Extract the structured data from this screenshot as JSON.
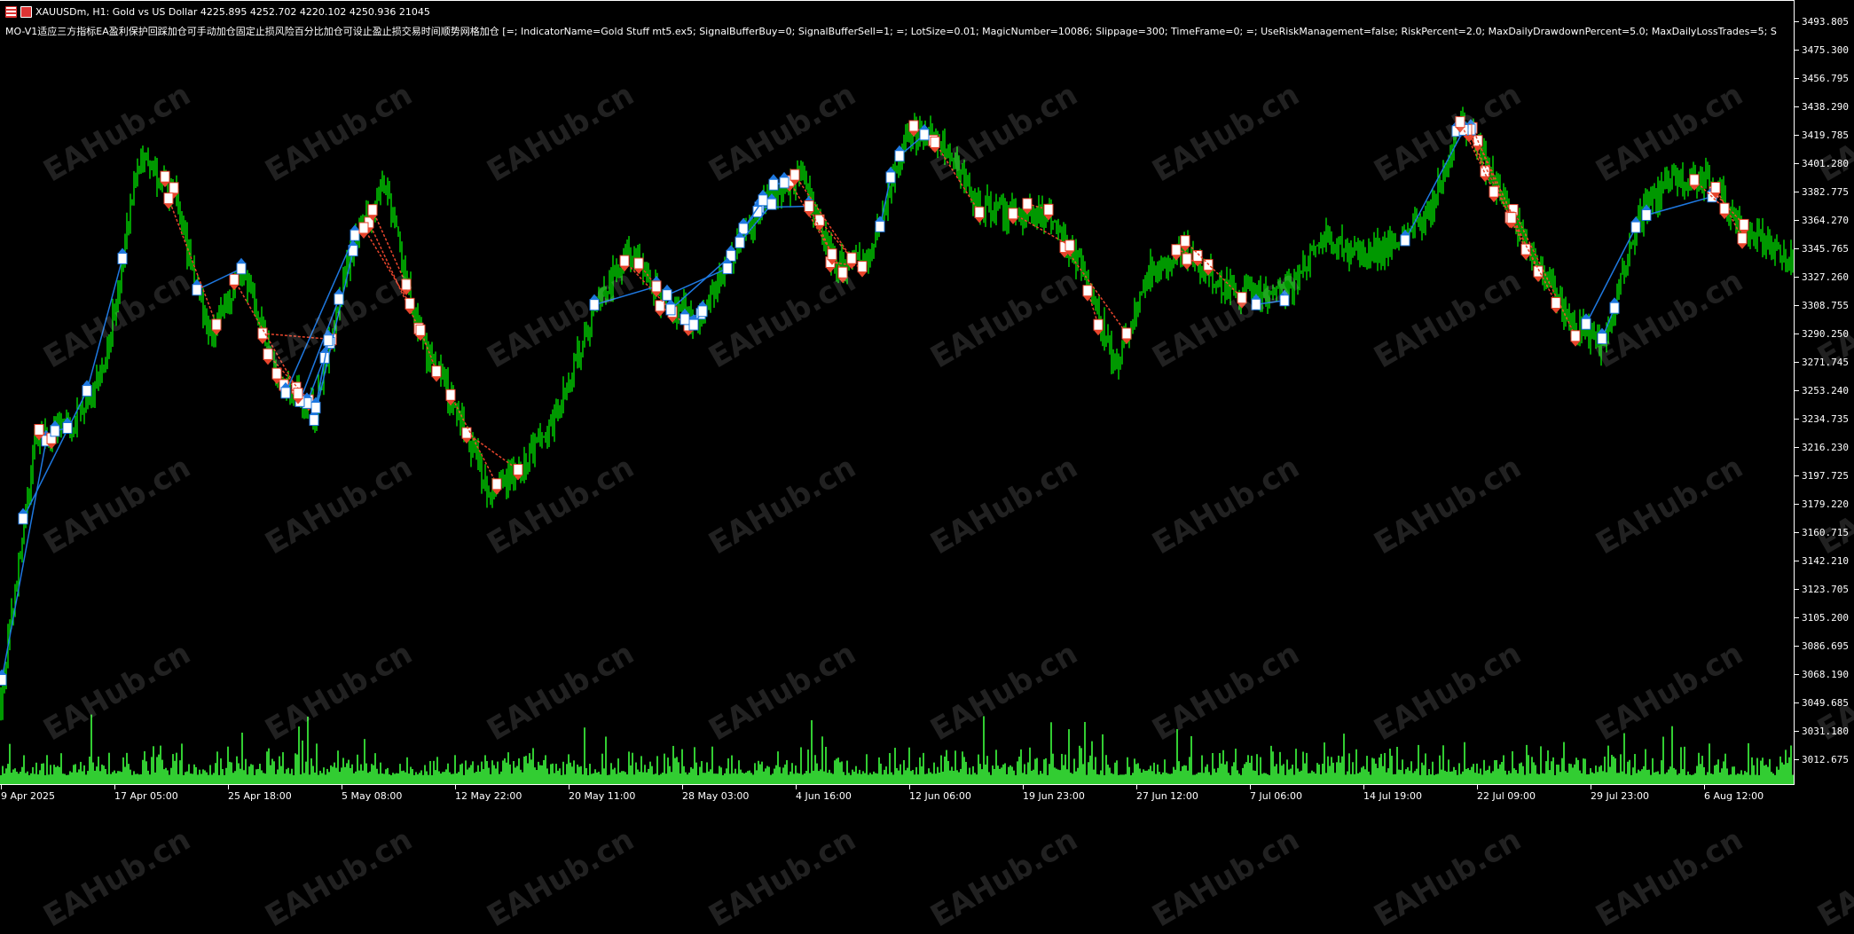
{
  "header": {
    "symbol_line": "XAUUSDm, H1:  Gold vs US Dollar  4225.895 4252.702 4220.102 4250.936  21045",
    "indicator_line": "MO-V1适应三方指标EA盈利保护回踩加仓可手动加仓固定止损风险百分比加仓可设止盈止损交易时间顺势网格加仓 [=; IndicatorName=Gold Stuff mt5.ex5; SignalBufferBuy=0; SignalBufferSell=1; =; LotSize=0.01; MagicNumber=10086; Slippage=300; TimeFrame=0; =; UseRiskManagement=false; RiskPercent=2.0; MaxDailyDrawdownPercent=5.0; MaxDailyLossTrades=5; S"
  },
  "watermark": "EAHub.cn",
  "colors": {
    "background": "#000000",
    "candles": "#00ff00",
    "volume": "#32cd32",
    "buy": "#1e78e0",
    "sell": "#e8452c",
    "axis": "#ffffff"
  },
  "chart_data": {
    "type": "line",
    "symbol": "XAUUSDm",
    "timeframe": "H1",
    "price_ticks": [
      "3493.805",
      "3475.300",
      "3456.795",
      "3438.290",
      "3419.785",
      "3401.280",
      "3382.775",
      "3364.270",
      "3345.765",
      "3327.260",
      "3308.755",
      "3290.250",
      "3271.745",
      "3253.240",
      "3234.735",
      "3216.230",
      "3197.725",
      "3179.220",
      "3160.715",
      "3142.210",
      "3123.705",
      "3105.200",
      "3086.695",
      "3068.190",
      "3049.685",
      "3031.180",
      "3012.675"
    ],
    "ylim": [
      3003.4,
      3500
    ],
    "time_ticks": [
      "9 Apr 2025",
      "17 Apr 05:00",
      "25 Apr 18:00",
      "5 May 08:00",
      "12 May 22:00",
      "20 May 11:00",
      "28 May 03:00",
      "4 Jun 16:00",
      "12 Jun 06:00",
      "19 Jun 23:00",
      "27 Jun 12:00",
      "7 Jul 06:00",
      "14 Jul 19:00",
      "22 Jul 09:00",
      "29 Jul 23:00",
      "6 Aug 12:00"
    ],
    "price_path": [
      3053,
      3222,
      3230,
      3270,
      3410,
      3380,
      3290,
      3331,
      3261,
      3240,
      3340,
      3390,
      3290,
      3245,
      3190,
      3207,
      3238,
      3305,
      3346,
      3312,
      3300,
      3340,
      3380,
      3392,
      3335,
      3342,
      3420,
      3420,
      3375,
      3370,
      3369,
      3335,
      3269,
      3331,
      3346,
      3323,
      3315,
      3320,
      3354,
      3342,
      3350,
      3369,
      3431,
      3385,
      3340,
      3300,
      3284,
      3365,
      3392,
      3392,
      3360,
      3346
    ],
    "grid": false
  }
}
